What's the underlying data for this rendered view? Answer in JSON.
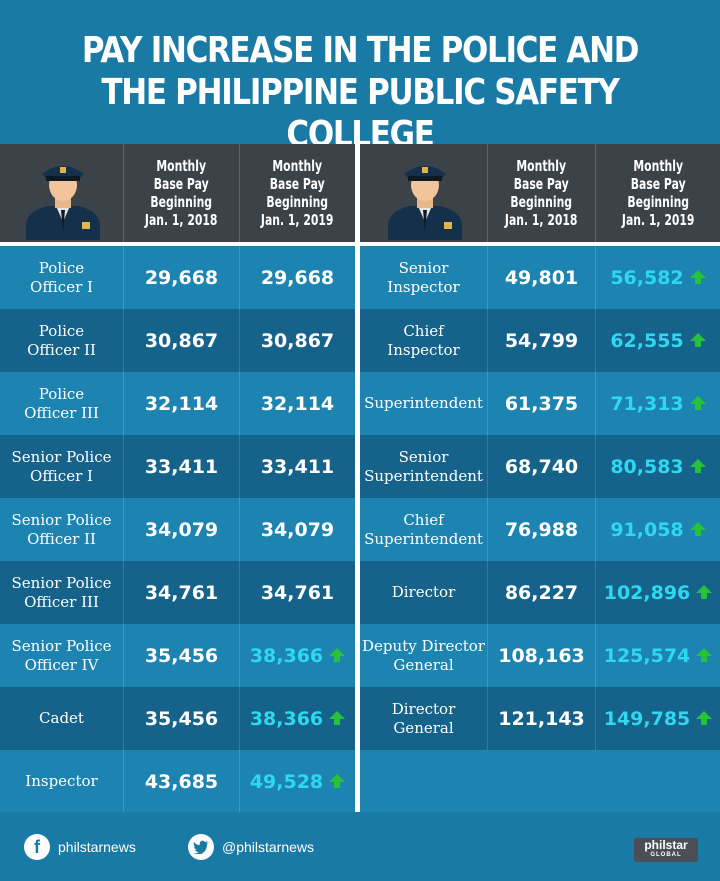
{
  "title_line1": "PAY INCREASE IN THE POLICE AND",
  "title_line2": "THE PHILIPPINE PUBLIC SAFETY COLLEGE",
  "headers": {
    "col2018": [
      "Monthly",
      "Base Pay",
      "Beginning",
      "Jan. 1, 2018"
    ],
    "col2019": [
      "Monthly",
      "Base Pay",
      "Beginning",
      "Jan. 1, 2019"
    ]
  },
  "colors": {
    "bg": "#1a7aa6",
    "row_dark": "#15628a",
    "row_light": "#1d84b1",
    "header": "#3b4248",
    "increase": "#2ed8f0",
    "arrow": "#27c23a"
  },
  "left_rows": [
    {
      "rank": [
        "Police",
        "Officer I"
      ],
      "pay2018": "29,668",
      "pay2019": "29,668",
      "increase": false
    },
    {
      "rank": [
        "Police",
        "Officer II"
      ],
      "pay2018": "30,867",
      "pay2019": "30,867",
      "increase": false
    },
    {
      "rank": [
        "Police",
        "Officer III"
      ],
      "pay2018": "32,114",
      "pay2019": "32,114",
      "increase": false
    },
    {
      "rank": [
        "Senior Police",
        "Officer I"
      ],
      "pay2018": "33,411",
      "pay2019": "33,411",
      "increase": false
    },
    {
      "rank": [
        "Senior Police",
        "Officer II"
      ],
      "pay2018": "34,079",
      "pay2019": "34,079",
      "increase": false
    },
    {
      "rank": [
        "Senior Police",
        "Officer III"
      ],
      "pay2018": "34,761",
      "pay2019": "34,761",
      "increase": false
    },
    {
      "rank": [
        "Senior Police",
        "Officer IV"
      ],
      "pay2018": "35,456",
      "pay2019": "38,366",
      "increase": true
    },
    {
      "rank": [
        "Cadet"
      ],
      "pay2018": "35,456",
      "pay2019": "38,366",
      "increase": true
    },
    {
      "rank": [
        "Inspector"
      ],
      "pay2018": "43,685",
      "pay2019": "49,528",
      "increase": true
    }
  ],
  "right_rows": [
    {
      "rank": [
        "Senior",
        "Inspector"
      ],
      "pay2018": "49,801",
      "pay2019": "56,582",
      "increase": true
    },
    {
      "rank": [
        "Chief",
        "Inspector"
      ],
      "pay2018": "54,799",
      "pay2019": "62,555",
      "increase": true
    },
    {
      "rank": [
        "Superintendent"
      ],
      "pay2018": "61,375",
      "pay2019": "71,313",
      "increase": true
    },
    {
      "rank": [
        "Senior",
        "Superintendent"
      ],
      "pay2018": "68,740",
      "pay2019": "80,583",
      "increase": true
    },
    {
      "rank": [
        "Chief",
        "Superintendent"
      ],
      "pay2018": "76,988",
      "pay2019": "91,058",
      "increase": true
    },
    {
      "rank": [
        "Director"
      ],
      "pay2018": "86,227",
      "pay2019": "102,896",
      "increase": true
    },
    {
      "rank": [
        "Deputy Director",
        "General"
      ],
      "pay2018": "108,163",
      "pay2019": "125,574",
      "increase": true
    },
    {
      "rank": [
        "Director",
        "General"
      ],
      "pay2018": "121,143",
      "pay2019": "149,785",
      "increase": true
    }
  ],
  "footer": {
    "facebook": "philstarnews",
    "twitter": "@philstarnews",
    "logo_main": "philstar",
    "logo_sub": "GLOBAL"
  }
}
